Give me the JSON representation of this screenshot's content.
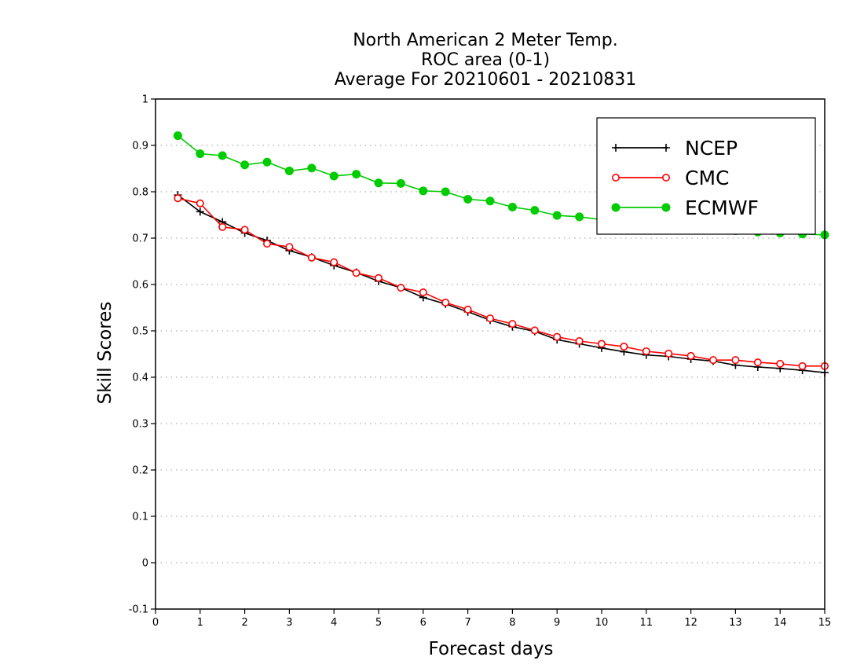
{
  "chart_data": {
    "type": "line",
    "title": [
      "North American 2 Meter Temp.",
      "ROC area (0-1)",
      "Average For 20210601 - 20210831"
    ],
    "xlabel": "Forecast days",
    "ylabel": "Skill Scores",
    "xlim": [
      0,
      15
    ],
    "ylim": [
      -0.1,
      1
    ],
    "xticks": [
      0,
      1,
      2,
      3,
      4,
      5,
      6,
      7,
      8,
      9,
      10,
      11,
      12,
      13,
      14,
      15
    ],
    "yticks": [
      -0.1,
      0,
      0.1,
      0.2,
      0.3,
      0.4,
      0.5,
      0.6,
      0.7,
      0.8,
      0.9,
      1
    ],
    "ytick_labels": [
      "-0.1",
      "0",
      "0.1",
      "0.2",
      "0.3",
      "0.4",
      "0.5",
      "0.6",
      "0.7",
      "0.8",
      "0.9",
      "1"
    ],
    "grid": "horizontal-dotted",
    "legend_position": "top-right",
    "x": [
      0.5,
      1,
      1.5,
      2,
      2.5,
      3,
      3.5,
      4,
      4.5,
      5,
      5.5,
      6,
      6.5,
      7,
      7.5,
      8,
      8.5,
      9,
      9.5,
      10,
      10.5,
      11,
      11.5,
      12,
      12.5,
      13,
      13.5,
      14,
      14.5,
      15
    ],
    "series": [
      {
        "name": "NCEP",
        "color": "#000000",
        "marker": "plus",
        "values": [
          0.793,
          0.757,
          0.735,
          0.711,
          0.695,
          0.673,
          0.659,
          0.641,
          0.626,
          0.607,
          0.593,
          0.572,
          0.558,
          0.541,
          0.523,
          0.509,
          0.499,
          0.481,
          0.472,
          0.463,
          0.455,
          0.448,
          0.445,
          0.439,
          0.435,
          0.426,
          0.422,
          0.419,
          0.415,
          0.41
        ]
      },
      {
        "name": "CMC",
        "color": "#ff0000",
        "marker": "open-circle",
        "values": [
          0.786,
          0.775,
          0.724,
          0.718,
          0.688,
          0.681,
          0.658,
          0.648,
          0.625,
          0.614,
          0.593,
          0.583,
          0.561,
          0.546,
          0.527,
          0.515,
          0.501,
          0.487,
          0.478,
          0.472,
          0.466,
          0.456,
          0.451,
          0.446,
          0.437,
          0.437,
          0.432,
          0.429,
          0.424,
          0.424
        ]
      },
      {
        "name": "ECMWF",
        "color": "#00cc00",
        "marker": "filled-circle",
        "values": [
          0.921,
          0.882,
          0.878,
          0.858,
          0.864,
          0.845,
          0.851,
          0.834,
          0.838,
          0.819,
          0.818,
          0.802,
          0.8,
          0.784,
          0.78,
          0.767,
          0.76,
          0.749,
          0.746,
          0.74,
          0.735,
          0.73,
          0.727,
          0.723,
          0.72,
          0.716,
          0.713,
          0.711,
          0.709,
          0.707
        ]
      }
    ]
  }
}
